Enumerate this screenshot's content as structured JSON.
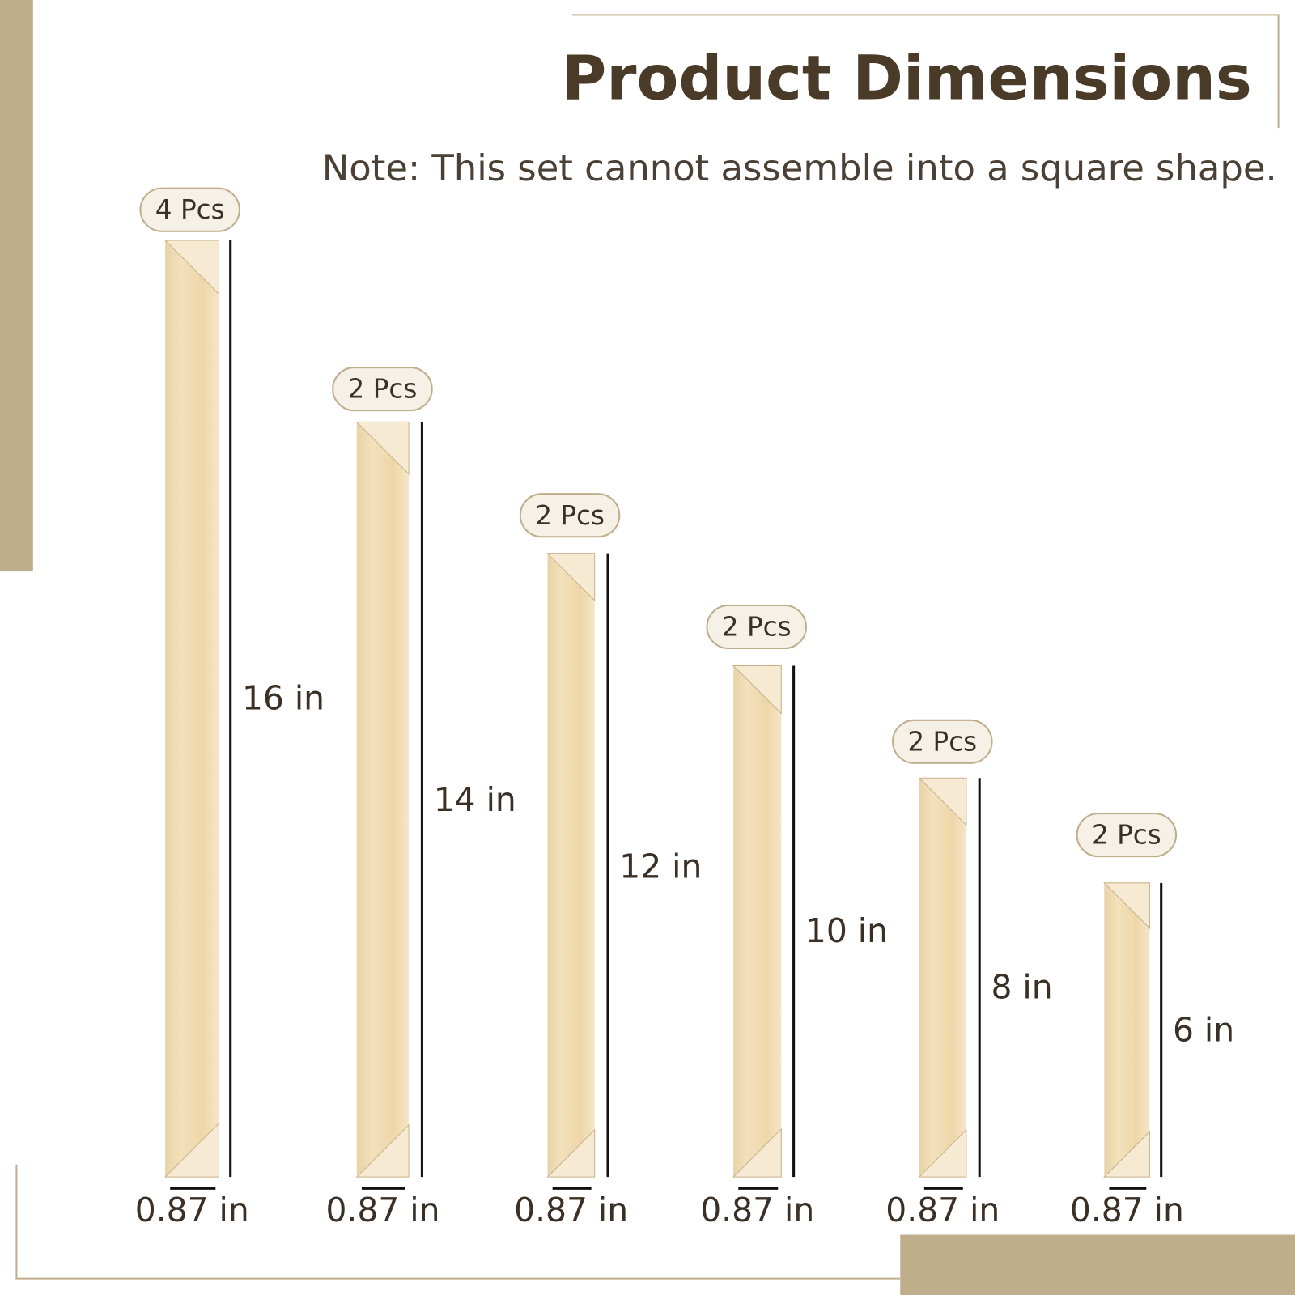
{
  "header": {
    "title": "Product Dimensions",
    "note": "Note: This set cannot assemble into a square shape."
  },
  "items": [
    {
      "pcs": "4 Pcs",
      "length": "16 in",
      "width": "0.87 in"
    },
    {
      "pcs": "2 Pcs",
      "length": "14 in",
      "width": "0.87 in"
    },
    {
      "pcs": "2 Pcs",
      "length": "12 in",
      "width": "0.87 in"
    },
    {
      "pcs": "2 Pcs",
      "length": "10 in",
      "width": "0.87 in"
    },
    {
      "pcs": "2 Pcs",
      "length": "8 in",
      "width": "0.87 in"
    },
    {
      "pcs": "2 Pcs",
      "length": "6 in",
      "width": "0.87 in"
    }
  ]
}
